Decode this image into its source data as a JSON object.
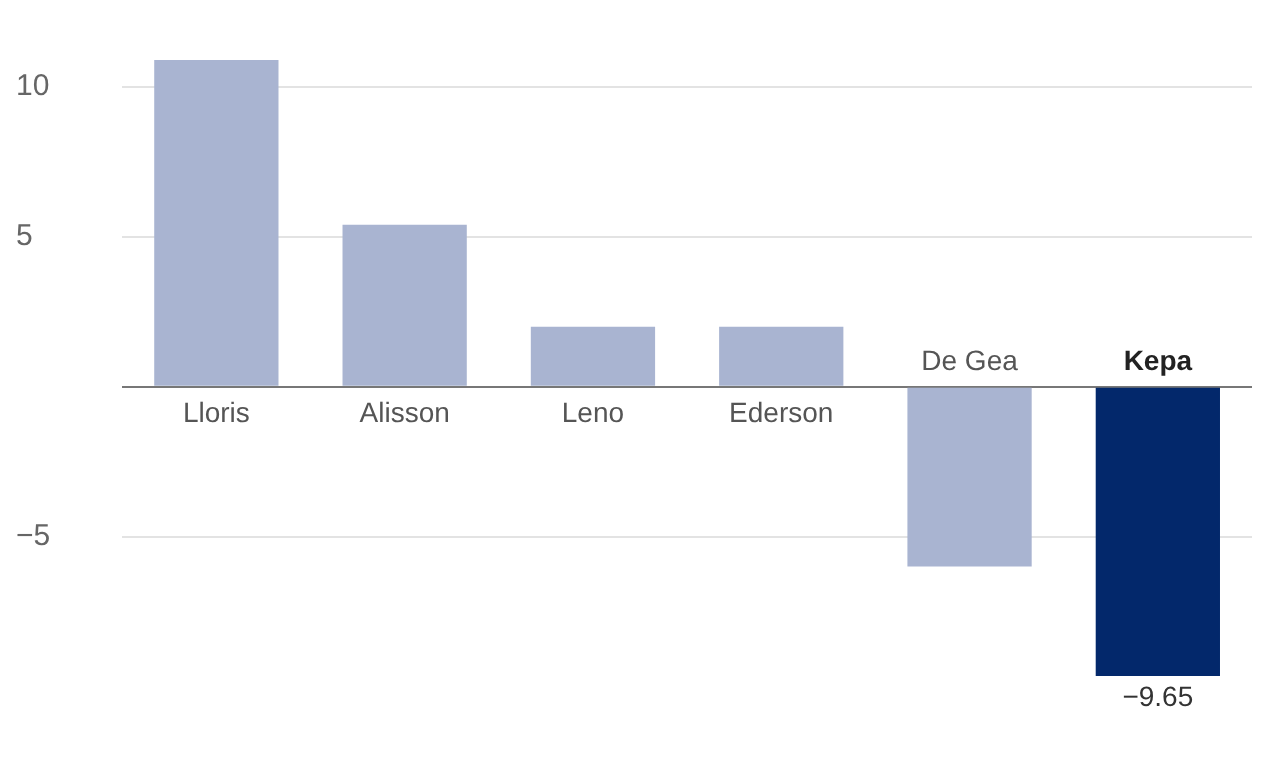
{
  "chart_data": {
    "type": "bar",
    "categories": [
      "Lloris",
      "Alisson",
      "Leno",
      "Ederson",
      "De Gea",
      "Kepa"
    ],
    "values": [
      10.9,
      5.4,
      2.0,
      2.0,
      -6.0,
      -9.65
    ],
    "colors": [
      "#a9b4d1",
      "#a9b4d1",
      "#a9b4d1",
      "#a9b4d1",
      "#a9b4d1",
      "#03286b"
    ],
    "value_labels": [
      null,
      null,
      null,
      null,
      null,
      "−9.65"
    ],
    "ylim": [
      -9.65,
      10.9
    ],
    "yticks": [
      {
        "value": -5,
        "label": "−5"
      },
      {
        "value": 0,
        "label": null
      },
      5,
      10
    ],
    "grid": "y",
    "legend": false
  }
}
